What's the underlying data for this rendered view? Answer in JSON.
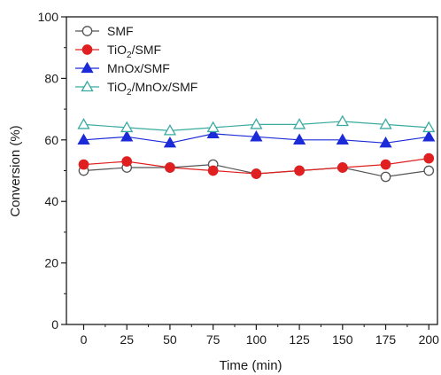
{
  "chart_data": {
    "type": "line",
    "title": "",
    "xlabel": "Time (min)",
    "ylabel": "Conversion (%)",
    "xlim": [
      -10,
      205
    ],
    "ylim": [
      0,
      100
    ],
    "xticks": [
      0,
      25,
      50,
      75,
      100,
      125,
      150,
      175,
      200
    ],
    "yticks": [
      0,
      20,
      40,
      60,
      80,
      100
    ],
    "grid": false,
    "legend": {
      "placement": "top-left"
    },
    "x": [
      0,
      25,
      50,
      75,
      100,
      125,
      150,
      175,
      200
    ],
    "series": [
      {
        "name": "SMF",
        "name_parts": [
          {
            "t": "SMF"
          }
        ],
        "marker": "circle-open",
        "color": "#555555",
        "values": [
          50,
          51,
          51,
          52,
          49,
          50,
          51,
          48,
          50
        ]
      },
      {
        "name": "TiO2/SMF",
        "name_parts": [
          {
            "t": "TiO"
          },
          {
            "t": "2",
            "sub": true
          },
          {
            "t": "/SMF"
          }
        ],
        "marker": "circle-filled",
        "color": "#e02020",
        "values": [
          52,
          53,
          51,
          50,
          49,
          50,
          51,
          52,
          54
        ]
      },
      {
        "name": "MnOx/SMF",
        "name_parts": [
          {
            "t": "MnOx/SMF"
          }
        ],
        "marker": "triangle-filled",
        "color": "#1c2bd8",
        "values": [
          60,
          61,
          59,
          62,
          61,
          60,
          60,
          59,
          61
        ]
      },
      {
        "name": "TiO2/MnOx/SMF",
        "name_parts": [
          {
            "t": "TiO"
          },
          {
            "t": "2",
            "sub": true
          },
          {
            "t": "/MnOx/SMF"
          }
        ],
        "marker": "triangle-open",
        "color": "#3aaaa0",
        "values": [
          65,
          64,
          63,
          64,
          65,
          65,
          66,
          65,
          64
        ]
      }
    ]
  }
}
